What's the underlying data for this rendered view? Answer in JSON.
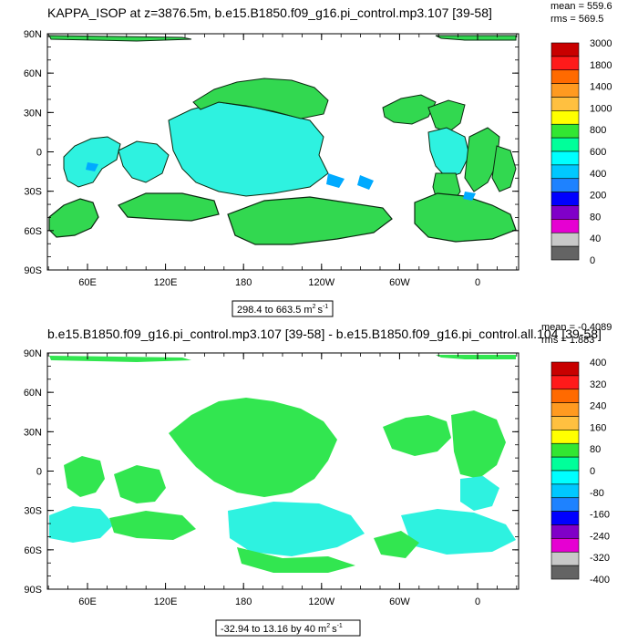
{
  "chart_data": [
    {
      "type": "heatmap",
      "title": "KAPPA_ISOP at z=3876.5m, b.e15.B1850.f09_g16.pi_control.mp3.107 [39-58]",
      "stats": [
        "mean = 559.6",
        "rms = 569.5"
      ],
      "range_label": "298.4 to 663.5 m",
      "range_unit_sup": "2",
      "range_unit_tail": "s",
      "range_unit_tail_sup": "-1",
      "y_tick_labels": [
        "90N",
        "60N",
        "30N",
        "0",
        "30S",
        "60S",
        "90S"
      ],
      "x_tick_labels": [
        "60E",
        "120E",
        "180",
        "120W",
        "60W",
        "0"
      ],
      "colorbar_levels": [
        "3000",
        "1800",
        "1400",
        "1000",
        "800",
        "600",
        "400",
        "200",
        "80",
        "40",
        "0"
      ],
      "colorbar_colors": [
        "#c80000",
        "#ff1a1a",
        "#ff6a00",
        "#ff9a20",
        "#ffc040",
        "#ffff00",
        "#32e632",
        "#00ff9a",
        "#00ffff",
        "#00c8ff",
        "#1e82ff",
        "#0000ff",
        "#8000c8",
        "#e600d2",
        "#c8c8c8",
        "#646464"
      ],
      "land_color": "#32d850",
      "ocean_color": "#2ef2e0",
      "deep_color": "#00aaff"
    },
    {
      "type": "heatmap",
      "title": "b.e15.B1850.f09_g16.pi_control.mp3.107 [39-58] - b.e15.B1850.f09_g16.pi_control.all.104 [39-58]",
      "stats": [
        "mean = -0.4089",
        "rms = 1.883"
      ],
      "range_label": "-32.94 to 13.16 by 40 m",
      "range_unit_sup": "2",
      "range_unit_tail": "s",
      "range_unit_tail_sup": "-1",
      "y_tick_labels": [
        "90N",
        "60N",
        "30N",
        "0",
        "30S",
        "60S",
        "90S"
      ],
      "x_tick_labels": [
        "60E",
        "120E",
        "180",
        "120W",
        "60W",
        "0"
      ],
      "colorbar_levels": [
        "400",
        "320",
        "240",
        "160",
        "80",
        "0",
        "-80",
        "-160",
        "-240",
        "-320",
        "-400"
      ],
      "colorbar_colors": [
        "#c80000",
        "#ff1a1a",
        "#ff6a00",
        "#ff9a20",
        "#ffc040",
        "#ffff00",
        "#32e632",
        "#00ff9a",
        "#00ffff",
        "#00c8ff",
        "#1e82ff",
        "#0000ff",
        "#8000c8",
        "#e600d2",
        "#c8c8c8",
        "#646464"
      ],
      "land_color": "#32e650",
      "ocean_color": "#2ef2e0"
    }
  ]
}
